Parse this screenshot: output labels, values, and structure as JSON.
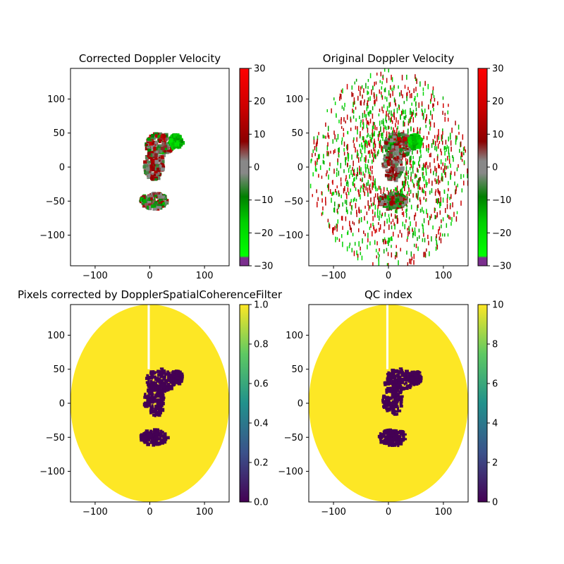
{
  "chart_data": [
    {
      "type": "heatmap",
      "title": "Corrected Doppler Velocity",
      "xlim": [
        -145,
        145
      ],
      "ylim": [
        -145,
        145
      ],
      "xticks": [
        -100,
        0,
        100
      ],
      "yticks": [
        -100,
        -50,
        0,
        50,
        100
      ],
      "colorbar": {
        "cmap": "doppler",
        "min": -30,
        "max": 30,
        "ticks": [
          -30,
          -20,
          -10,
          0,
          10,
          20,
          30
        ]
      },
      "regions": [
        {
          "name": "northeast-echo",
          "cx": 15,
          "cy": 35,
          "rx": 25,
          "ry": 18,
          "value_range": [
            -15,
            18
          ]
        },
        {
          "name": "green-patch",
          "cx": 45,
          "cy": 40,
          "rx": 12,
          "ry": 10,
          "value_range": [
            -22,
            -10
          ]
        },
        {
          "name": "central-echo",
          "cx": 5,
          "cy": 5,
          "rx": 18,
          "ry": 22,
          "value_range": [
            -8,
            14
          ]
        },
        {
          "name": "south-echo",
          "cx": 5,
          "cy": -48,
          "rx": 25,
          "ry": 12,
          "value_range": [
            -15,
            15
          ]
        }
      ],
      "random_speckle": false
    },
    {
      "type": "heatmap",
      "title": "Original Doppler Velocity",
      "xlim": [
        -145,
        145
      ],
      "ylim": [
        -145,
        145
      ],
      "xticks": [
        -100,
        0,
        100
      ],
      "yticks": [
        -100,
        -50,
        0,
        50,
        100
      ],
      "colorbar": {
        "cmap": "doppler",
        "min": -30,
        "max": 30,
        "ticks": [
          -30,
          -20,
          -10,
          0,
          10,
          20,
          30
        ]
      },
      "regions": [
        {
          "name": "northeast-echo",
          "cx": 15,
          "cy": 35,
          "rx": 25,
          "ry": 18,
          "value_range": [
            -15,
            18
          ]
        },
        {
          "name": "green-patch",
          "cx": 45,
          "cy": 40,
          "rx": 12,
          "ry": 10,
          "value_range": [
            -22,
            -10
          ]
        },
        {
          "name": "central-echo",
          "cx": 5,
          "cy": 5,
          "rx": 18,
          "ry": 22,
          "value_range": [
            -8,
            14
          ]
        },
        {
          "name": "south-echo",
          "cx": 5,
          "cy": -48,
          "rx": 25,
          "ry": 12,
          "value_range": [
            -15,
            15
          ]
        }
      ],
      "random_speckle": true,
      "speckle_radius": 145
    },
    {
      "type": "heatmap",
      "title": "Pixels corrected by DopplerSpatialCoherenceFilter",
      "xlim": [
        -145,
        145
      ],
      "ylim": [
        -145,
        145
      ],
      "xticks": [
        -100,
        0,
        100
      ],
      "yticks": [
        -100,
        -50,
        0,
        50,
        100
      ],
      "colorbar": {
        "cmap": "viridis",
        "min": 0.0,
        "max": 1.0,
        "ticks": [
          "0.0",
          "0.2",
          "0.4",
          "0.6",
          "0.8",
          "1.0"
        ]
      },
      "background_value": 1,
      "inside_value": 0,
      "disk_radius": 145,
      "gap_x_range": [
        -4,
        0
      ]
    },
    {
      "type": "heatmap",
      "title": "QC index",
      "xlim": [
        -145,
        145
      ],
      "ylim": [
        -145,
        145
      ],
      "xticks": [
        -100,
        0,
        100
      ],
      "yticks": [
        -100,
        -50,
        0,
        50,
        100
      ],
      "colorbar": {
        "cmap": "viridis",
        "min": 0,
        "max": 10,
        "ticks": [
          0,
          2,
          4,
          6,
          8,
          10
        ]
      },
      "background_value": 10,
      "inside_value": 0,
      "disk_radius": 145,
      "gap_x_range": [
        -4,
        0
      ]
    }
  ],
  "colors": {
    "viridis_high": "#fde725",
    "viridis_low": "#440154",
    "doppler_dark_red": "#8b0000",
    "doppler_green": "#008000"
  }
}
